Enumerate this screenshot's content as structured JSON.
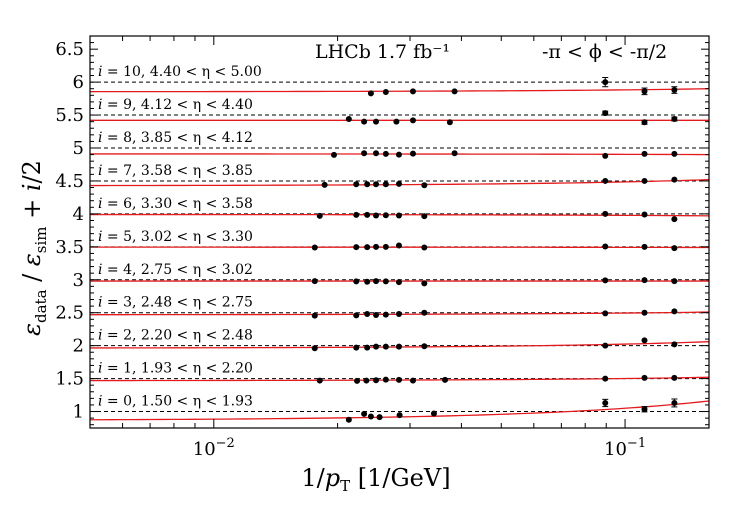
{
  "chart_data": {
    "type": "scatter",
    "title": "LHCb 1.7 fb⁻¹",
    "phi_range": "-π < ϕ < -π/2",
    "xlabel": "1/p_T [1/GeV]",
    "ylabel": "ε_data / ε_sim + i/2",
    "xscale": "log",
    "xlim": [
      0.005,
      0.16
    ],
    "ylim": [
      0.75,
      6.7
    ],
    "x_ticks": [
      {
        "value": 0.01,
        "base": "10",
        "exp": "−2"
      },
      {
        "value": 0.1,
        "base": "10",
        "exp": "−1"
      }
    ],
    "y_ticks": [
      1,
      1.5,
      2,
      2.5,
      3,
      3.5,
      4,
      4.5,
      5,
      5.5,
      6,
      6.5
    ],
    "y_tick_labels": [
      "1",
      "1.5",
      "2",
      "2.5",
      "3",
      "3.5",
      "4",
      "4.5",
      "5",
      "5.5",
      "6",
      "6.5"
    ],
    "reference_lines": [
      1,
      1.5,
      2,
      2.5,
      3,
      3.5,
      4,
      4.5,
      5,
      5.5,
      6
    ],
    "series": [
      {
        "i": 0,
        "label": "1.50 < η < 1.93",
        "x": [
          0.0213,
          0.0232,
          0.0241,
          0.0253,
          0.0283,
          0.0343,
          0.0895,
          0.1115,
          0.1318
        ],
        "y": [
          0.875,
          0.965,
          0.925,
          0.915,
          0.945,
          0.97,
          1.13,
          1.035,
          1.13
        ],
        "err": [
          0,
          0,
          0,
          0,
          0,
          0,
          0.055,
          0.04,
          0.06
        ],
        "fit": [
          0.875,
          1.16
        ]
      },
      {
        "i": 1,
        "label": "1.93 < η < 2.20",
        "x": [
          0.0181,
          0.0223,
          0.0235,
          0.0248,
          0.0262,
          0.0282,
          0.0305,
          0.0365,
          0.0895,
          0.1115,
          0.1318
        ],
        "y": [
          1.47,
          1.465,
          1.47,
          1.475,
          1.485,
          1.48,
          1.47,
          1.48,
          1.5,
          1.51,
          1.51
        ],
        "err": [
          0,
          0,
          0,
          0,
          0,
          0,
          0,
          0,
          0,
          0,
          0
        ],
        "fit": [
          1.47,
          1.52
        ]
      },
      {
        "i": 2,
        "label": "2.20 < η < 2.48",
        "x": [
          0.0176,
          0.0222,
          0.0236,
          0.0248,
          0.0262,
          0.0282,
          0.0325,
          0.0895,
          0.1115,
          0.1318
        ],
        "y": [
          1.96,
          1.97,
          1.97,
          1.985,
          1.985,
          1.985,
          1.99,
          2.0,
          2.08,
          2.02
        ],
        "err": [
          0,
          0,
          0,
          0,
          0,
          0,
          0,
          0,
          0,
          0
        ],
        "fit": [
          1.965,
          2.06
        ]
      },
      {
        "i": 3,
        "label": "2.48 < η < 2.75",
        "x": [
          0.0176,
          0.0222,
          0.0236,
          0.0248,
          0.0262,
          0.0282,
          0.0325,
          0.0895,
          0.1115,
          0.1318
        ],
        "y": [
          2.455,
          2.46,
          2.48,
          2.465,
          2.47,
          2.48,
          2.5,
          2.49,
          2.5,
          2.52
        ],
        "err": [
          0,
          0,
          0,
          0,
          0,
          0,
          0,
          0,
          0,
          0
        ],
        "fit": [
          2.47,
          2.51
        ]
      },
      {
        "i": 4,
        "label": "2.75 < η < 3.02",
        "x": [
          0.0176,
          0.0222,
          0.0236,
          0.0248,
          0.0262,
          0.0282,
          0.0325,
          0.0895,
          0.1115,
          0.1318
        ],
        "y": [
          2.98,
          2.975,
          2.97,
          2.98,
          2.975,
          2.965,
          2.945,
          2.99,
          2.995,
          2.98
        ],
        "err": [
          0,
          0,
          0,
          0,
          0,
          0,
          0,
          0,
          0,
          0
        ],
        "fit": [
          2.98,
          2.98
        ]
      },
      {
        "i": 5,
        "label": "3.02 < η < 3.30",
        "x": [
          0.0176,
          0.0222,
          0.0236,
          0.0248,
          0.0262,
          0.0282,
          0.0325,
          0.0895,
          0.1115,
          0.1318
        ],
        "y": [
          3.49,
          3.495,
          3.495,
          3.5,
          3.5,
          3.52,
          3.49,
          3.505,
          3.5,
          3.48
        ],
        "err": [
          0,
          0,
          0,
          0,
          0,
          0,
          0,
          0,
          0,
          0
        ],
        "fit": [
          3.495,
          3.49
        ]
      },
      {
        "i": 6,
        "label": "3.30 < η < 3.58",
        "x": [
          0.0181,
          0.0222,
          0.0236,
          0.0248,
          0.0262,
          0.0282,
          0.0325,
          0.0895,
          0.1115,
          0.1318
        ],
        "y": [
          3.97,
          3.985,
          3.985,
          3.975,
          3.98,
          3.975,
          3.965,
          4.0,
          3.99,
          3.92
        ],
        "err": [
          0,
          0,
          0,
          0,
          0,
          0,
          0,
          0,
          0,
          0
        ],
        "fit": [
          3.99,
          3.97
        ]
      },
      {
        "i": 7,
        "label": "3.58 < η < 3.85",
        "x": [
          0.0186,
          0.0222,
          0.0236,
          0.0248,
          0.0262,
          0.0282,
          0.0325,
          0.0895,
          0.1115,
          0.1318
        ],
        "y": [
          4.44,
          4.45,
          4.45,
          4.45,
          4.45,
          4.455,
          4.435,
          4.5,
          4.5,
          4.52
        ],
        "err": [
          0,
          0,
          0,
          0,
          0,
          0,
          0,
          0,
          0,
          0
        ],
        "fit": [
          4.43,
          4.52
        ]
      },
      {
        "i": 8,
        "label": "3.85 < η < 4.12",
        "x": [
          0.0196,
          0.0232,
          0.0248,
          0.0262,
          0.0282,
          0.0305,
          0.0385,
          0.0895,
          0.1115,
          0.1318
        ],
        "y": [
          4.895,
          4.92,
          4.92,
          4.91,
          4.9,
          4.915,
          4.92,
          4.88,
          4.91,
          4.91
        ],
        "err": [
          0,
          0,
          0,
          0,
          0,
          0,
          0,
          0,
          0,
          0
        ],
        "fit": [
          4.91,
          4.9
        ]
      },
      {
        "i": 9,
        "label": "4.12 < η < 4.40",
        "x": [
          0.0213,
          0.0232,
          0.0248,
          0.0278,
          0.0305,
          0.0375,
          0.0895,
          0.1115,
          0.1318
        ],
        "y": [
          5.44,
          5.4,
          5.4,
          5.4,
          5.42,
          5.39,
          5.53,
          5.39,
          5.44
        ],
        "err": [
          0,
          0,
          0,
          0,
          0,
          0,
          0.03,
          0.03,
          0.03
        ],
        "fit": [
          5.42,
          5.42
        ]
      },
      {
        "i": 10,
        "label": "4.40 < η < 5.00",
        "x": [
          0.0241,
          0.0262,
          0.0305,
          0.0385,
          0.0895,
          0.1115,
          0.1318
        ],
        "y": [
          5.83,
          5.85,
          5.86,
          5.86,
          6.0,
          5.86,
          5.88
        ],
        "err": [
          0,
          0,
          0,
          0,
          0.07,
          0.05,
          0.05
        ],
        "fit": [
          5.855,
          5.9
        ]
      }
    ]
  }
}
